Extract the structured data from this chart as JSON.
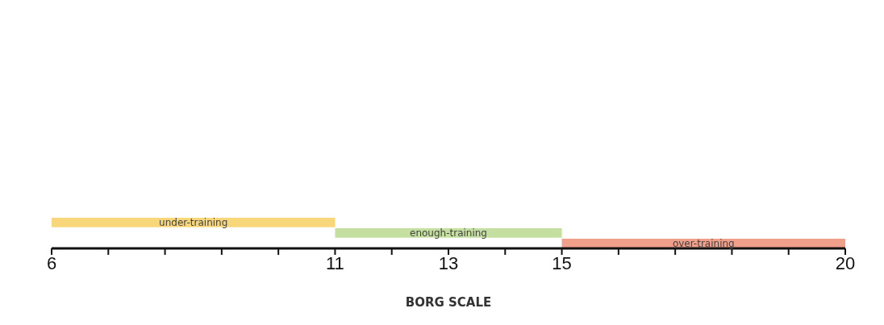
{
  "chart_data": {
    "type": "bar",
    "orientation": "horizontal",
    "xlabel": "BORG SCALE",
    "xlim": [
      6,
      20
    ],
    "xticks": [
      6,
      {
        "value": 7,
        "label": null
      },
      {
        "value": 8,
        "label": null
      },
      {
        "value": 9,
        "label": null
      },
      {
        "value": 10,
        "label": null
      },
      11,
      {
        "value": 12,
        "label": null
      },
      13,
      {
        "value": 14,
        "label": null
      },
      15,
      {
        "value": 16,
        "label": null
      },
      {
        "value": 17,
        "label": null
      },
      {
        "value": 18,
        "label": null
      },
      {
        "value": 19,
        "label": null
      },
      20
    ],
    "categories": [
      "under-training",
      "enough-training",
      "over-training"
    ],
    "base": [
      6,
      11,
      15
    ],
    "values": [
      5,
      4,
      5
    ],
    "colors": [
      "#f7d77a",
      "#c5dfa0",
      "#f0a08a"
    ]
  }
}
